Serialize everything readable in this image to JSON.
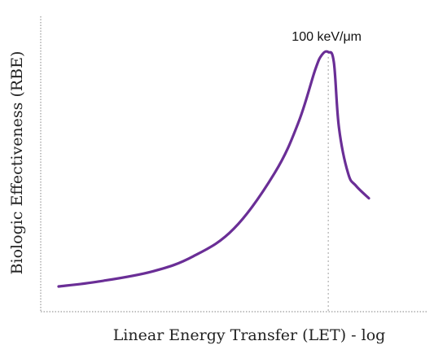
{
  "chart_data": {
    "type": "line",
    "xlabel": "Linear Energy Transfer (LET) - log",
    "ylabel": "Biologic Effectiveness (RBE)",
    "x_scale": "log",
    "ticks_shown": false,
    "grid": false,
    "annotation": "100 keV/μm",
    "annotation_x": 100,
    "colors": {
      "curve": "#6a2e96",
      "axis": "#9a9a9a",
      "marker_line": "#b0b0b0"
    },
    "series": [
      {
        "x": [
          1,
          2,
          5,
          10,
          20,
          40,
          60,
          80,
          90,
          100,
          110,
          120,
          140,
          160,
          200
        ],
        "y": [
          0.07,
          0.09,
          0.13,
          0.19,
          0.3,
          0.52,
          0.72,
          0.93,
          0.99,
          1.0,
          0.96,
          0.7,
          0.52,
          0.47,
          0.42
        ]
      }
    ]
  }
}
